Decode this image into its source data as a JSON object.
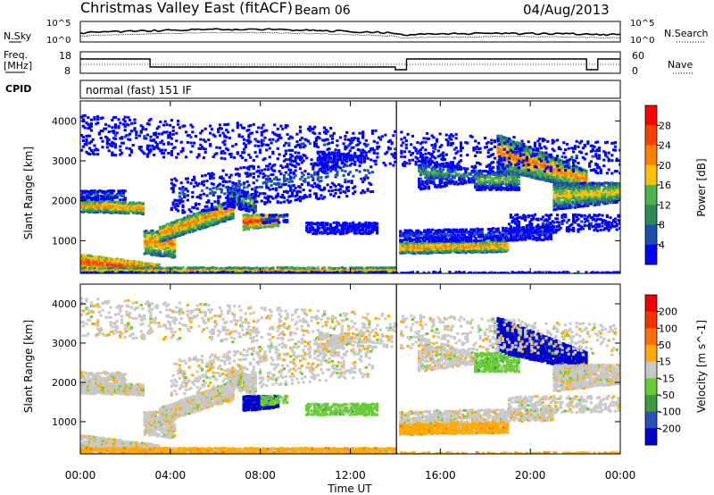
{
  "header": {
    "title": "Christmas Valley East (fitACF)",
    "beam": "Beam 06",
    "date": "04/Aug/2013"
  },
  "top_panels": {
    "nsky_label": "N.Sky",
    "nsearch_label": "N.Search",
    "freq_label_line1": "Freq.",
    "freq_label_line2": "[MHz]",
    "nave_label": "Nave",
    "cpid_label": "CPID",
    "cpid_value": "normal (fast) 151 IF",
    "noise_left_ticks": [
      "10^5",
      "10^0"
    ],
    "noise_right_ticks": [
      "10^5",
      "10^0"
    ],
    "freq_ticks": [
      "18",
      "8"
    ],
    "nave_ticks": [
      "60",
      "0"
    ]
  },
  "chart_data": [
    {
      "type": "heatmap",
      "xlabel": "Time UT",
      "ylabel": "Slant Range [km]",
      "x_ticks": [
        "00:00",
        "04:00",
        "08:00",
        "12:00",
        "16:00",
        "20:00",
        "00:00"
      ],
      "xlim_hours": [
        0,
        24
      ],
      "y_ticks": [
        1000,
        2000,
        3000,
        4000
      ],
      "ylim": [
        180,
        4500
      ],
      "colorbar": {
        "label": "Power [dB]",
        "ticks": [
          4,
          8,
          12,
          16,
          20,
          24,
          28
        ],
        "colors": [
          "#0000ff",
          "#1a4fb0",
          "#2e8a5a",
          "#4db34d",
          "#ffc000",
          "#ff8000",
          "#ff4000",
          "#ff0000"
        ]
      }
    },
    {
      "type": "heatmap",
      "xlabel": "Time UT",
      "ylabel": "Slant Range [km]",
      "x_ticks": [
        "00:00",
        "04:00",
        "08:00",
        "12:00",
        "16:00",
        "20:00",
        "00:00"
      ],
      "xlim_hours": [
        0,
        24
      ],
      "y_ticks": [
        1000,
        2000,
        3000,
        4000
      ],
      "ylim": [
        180,
        4500
      ],
      "colorbar": {
        "label": "Velocity [m s^-1]",
        "ticks": [
          200,
          100,
          50,
          15,
          -15,
          -50,
          -100,
          -200
        ],
        "colors": [
          "#0000cc",
          "#2850b8",
          "#3d9a3d",
          "#66cc33",
          "#c8c8c8",
          "#ffaa00",
          "#ff7000",
          "#ff3000",
          "#ee0000"
        ]
      }
    }
  ]
}
